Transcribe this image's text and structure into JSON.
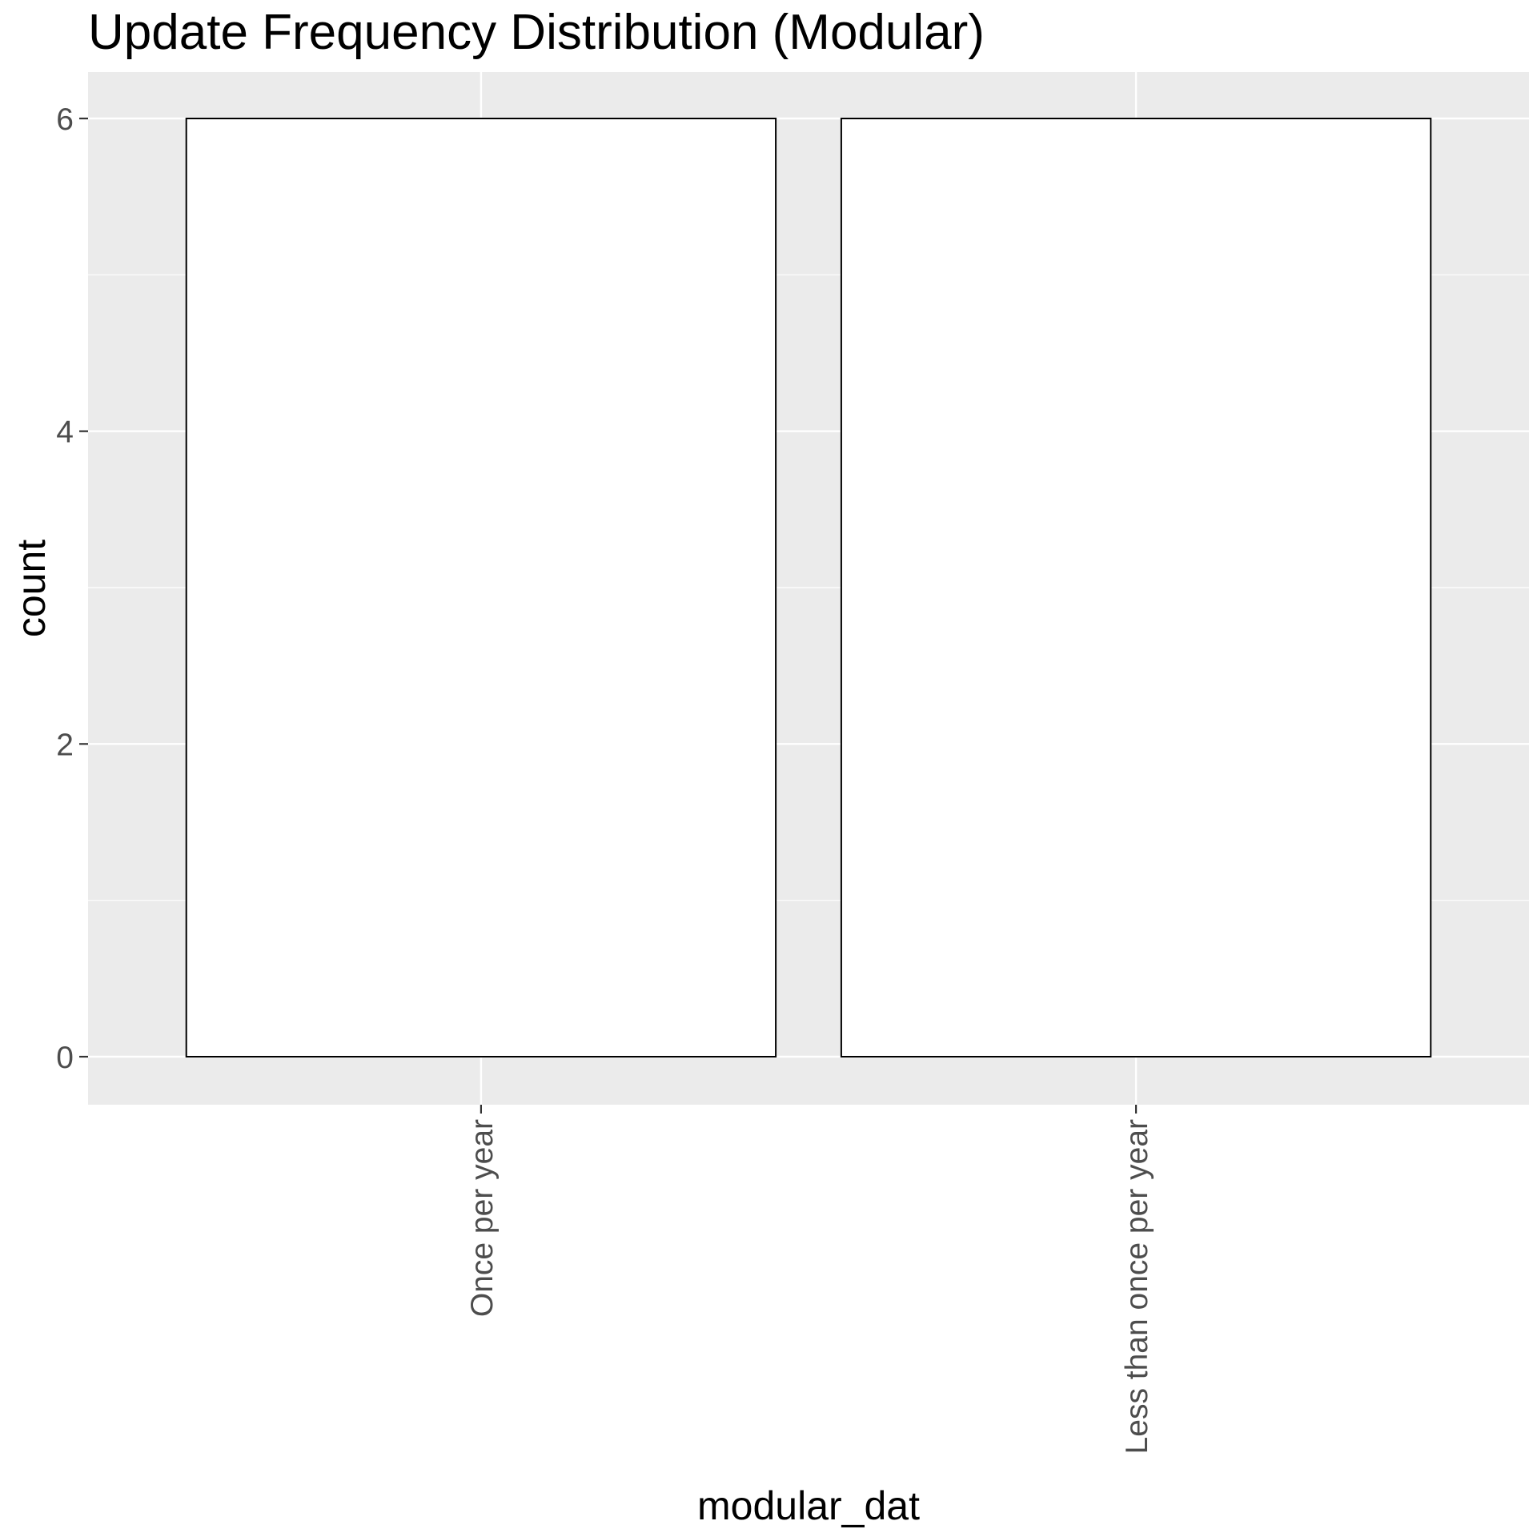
{
  "chart_data": {
    "type": "bar",
    "title": "Update Frequency Distribution (Modular)",
    "xlabel": "modular_dat",
    "ylabel": "count",
    "categories": [
      "Once per year",
      "Less than once per year"
    ],
    "values": [
      6,
      6
    ],
    "yticks": [
      0,
      2,
      4,
      6
    ],
    "ylim": [
      0,
      6.3
    ],
    "grid": true,
    "legend": "none",
    "colors": {
      "panel": "#ebebeb",
      "grid_major": "#ffffff",
      "bar_fill": "#ffffff",
      "bar_outline": "#000000",
      "tick_label": "#4d4d4d"
    }
  }
}
